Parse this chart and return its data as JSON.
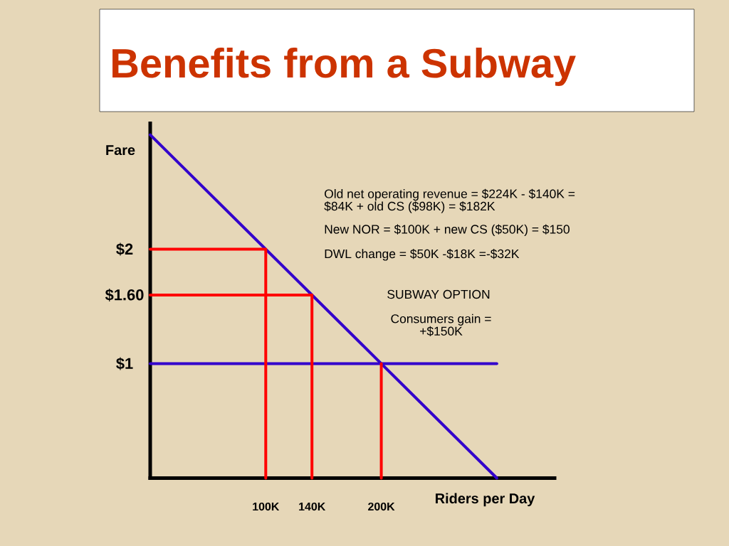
{
  "chart_data": {
    "type": "line",
    "title": "Benefits from a Subway",
    "xlabel": "Riders per Day",
    "ylabel": "Fare",
    "xlim": [
      0,
      350
    ],
    "ylim": [
      0,
      3.1
    ],
    "xticks": [
      {
        "value": 100,
        "label": "100K"
      },
      {
        "value": 140,
        "label": "140K"
      },
      {
        "value": 200,
        "label": "200K"
      }
    ],
    "yticks": [
      {
        "value": 1,
        "label": "$1"
      },
      {
        "value": 1.6,
        "label": "$1.60"
      },
      {
        "value": 2,
        "label": "$2"
      }
    ],
    "series": [
      {
        "color": "#3300cc",
        "x": [
          0,
          300
        ],
        "values": [
          3,
          0
        ]
      },
      {
        "color": "#3300cc",
        "x": [
          0,
          300
        ],
        "values": [
          1,
          1
        ]
      },
      {
        "color": "#ff0000",
        "x": [
          0,
          100,
          100
        ],
        "values": [
          2,
          2,
          0
        ]
      },
      {
        "color": "#ff0000",
        "x": [
          0,
          140,
          140
        ],
        "values": [
          1.6,
          1.6,
          0
        ]
      },
      {
        "color": "#ff0000",
        "x": [
          200,
          200
        ],
        "values": [
          1,
          0
        ]
      }
    ],
    "annotations": [
      "Old net operating revenue = $224K - $140K = $84K + old CS ($98K) = $182K",
      "New NOR = $100K + new CS ($50K) = $150",
      "DWL change = $50K -$18K =-$32K",
      "SUBWAY OPTION",
      "Consumers gain = +$150K"
    ]
  }
}
